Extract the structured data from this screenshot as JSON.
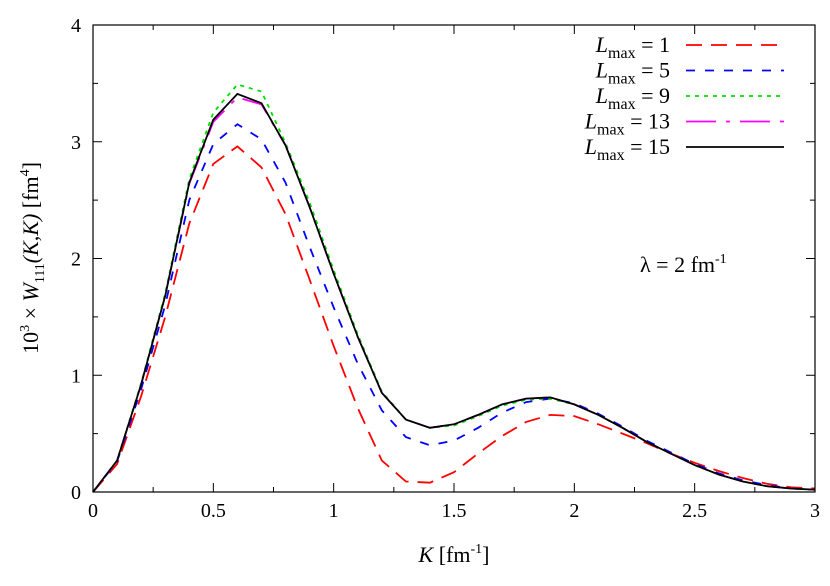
{
  "chart_data": {
    "type": "line",
    "xlabel": {
      "var": "K",
      "unit_pre": " [fm",
      "unit_exp": "-1",
      "unit_post": "]"
    },
    "ylabel": {
      "pre": "10",
      "exp": "3",
      "mid": " × ",
      "var": "W",
      "sub": "111",
      "args": "(K,K)",
      "unit_pre": " [fm",
      "unit_exp": "4",
      "unit_post": "]"
    },
    "annotation": {
      "text": "λ = 2 fm",
      "exp": "-1"
    },
    "xlim": [
      0,
      3
    ],
    "ylim": [
      0,
      4
    ],
    "xticks": [
      "0",
      "0.5",
      "1",
      "1.5",
      "2",
      "2.5",
      "3"
    ],
    "yticks": [
      "0",
      "1",
      "2",
      "3",
      "4"
    ],
    "grid": false,
    "legend_position": "top-right",
    "x": [
      0,
      0.1,
      0.2,
      0.3,
      0.4,
      0.5,
      0.6,
      0.7,
      0.8,
      0.9,
      1.0,
      1.1,
      1.2,
      1.3,
      1.4,
      1.5,
      1.6,
      1.7,
      1.8,
      1.9,
      2.0,
      2.1,
      2.2,
      2.3,
      2.4,
      2.5,
      2.6,
      2.7,
      2.8,
      2.9,
      3.0
    ],
    "series": [
      {
        "name": "L_max = 1",
        "label_var": "L",
        "label_sub": "max",
        "label_val": " = 1",
        "color": "#ff0000",
        "dash": "16,9",
        "values": [
          0,
          0.24,
          0.82,
          1.5,
          2.3,
          2.81,
          2.96,
          2.78,
          2.38,
          1.82,
          1.25,
          0.72,
          0.27,
          0.09,
          0.08,
          0.17,
          0.33,
          0.48,
          0.6,
          0.66,
          0.65,
          0.58,
          0.5,
          0.42,
          0.33,
          0.25,
          0.18,
          0.12,
          0.07,
          0.04,
          0.03
        ]
      },
      {
        "name": "L_max = 5",
        "label_var": "L",
        "label_sub": "max",
        "label_val": " = 5",
        "color": "#0000ff",
        "dash": "9,10",
        "values": [
          0,
          0.26,
          0.88,
          1.6,
          2.5,
          2.98,
          3.15,
          3.02,
          2.65,
          2.1,
          1.58,
          1.1,
          0.7,
          0.47,
          0.4,
          0.44,
          0.55,
          0.68,
          0.77,
          0.8,
          0.76,
          0.67,
          0.56,
          0.44,
          0.34,
          0.24,
          0.16,
          0.1,
          0.06,
          0.03,
          0.02
        ]
      },
      {
        "name": "L_max = 9",
        "label_var": "L",
        "label_sub": "max",
        "label_val": " = 9",
        "color": "#00dd00",
        "dash": "4,5",
        "values": [
          0,
          0.27,
          0.93,
          1.7,
          2.68,
          3.25,
          3.49,
          3.43,
          2.99,
          2.48,
          1.9,
          1.35,
          0.86,
          0.62,
          0.55,
          0.57,
          0.65,
          0.74,
          0.79,
          0.8,
          0.75,
          0.66,
          0.55,
          0.43,
          0.33,
          0.23,
          0.15,
          0.09,
          0.05,
          0.03,
          0.02
        ]
      },
      {
        "name": "L_max = 13",
        "label_var": "L",
        "label_sub": "max",
        "label_val": " = 13",
        "color": "#ff00ff",
        "dash": "30,10,4,10",
        "values": [
          0,
          0.27,
          0.92,
          1.68,
          2.64,
          3.17,
          3.38,
          3.32,
          2.97,
          2.44,
          1.87,
          1.33,
          0.85,
          0.62,
          0.55,
          0.58,
          0.66,
          0.75,
          0.8,
          0.81,
          0.75,
          0.66,
          0.55,
          0.43,
          0.33,
          0.23,
          0.15,
          0.09,
          0.05,
          0.03,
          0.02
        ]
      },
      {
        "name": "L_max = 15",
        "label_var": "L",
        "label_sub": "max",
        "label_val": " = 15",
        "color": "#000000",
        "dash": "",
        "values": [
          0,
          0.27,
          0.92,
          1.68,
          2.65,
          3.19,
          3.41,
          3.33,
          2.97,
          2.44,
          1.87,
          1.33,
          0.85,
          0.62,
          0.55,
          0.58,
          0.66,
          0.75,
          0.8,
          0.81,
          0.75,
          0.66,
          0.55,
          0.43,
          0.33,
          0.23,
          0.15,
          0.09,
          0.05,
          0.03,
          0.02
        ]
      }
    ]
  }
}
